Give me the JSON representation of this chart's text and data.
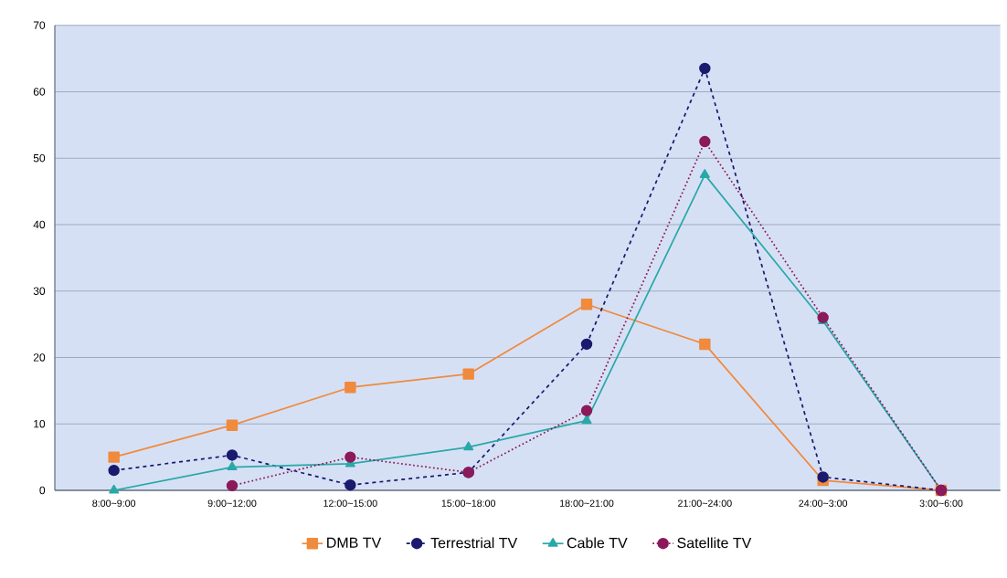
{
  "chart_data": {
    "type": "line",
    "categories": [
      "8:00~9:00",
      "9:00~12:00",
      "12:00~15:00",
      "15:00~18:00",
      "18:00~21:00",
      "21:00~24:00",
      "24:00~3:00",
      "3:00~6:00"
    ],
    "series": [
      {
        "name": "DMB TV",
        "color": "#f08a3c",
        "marker": "square",
        "line_style": "solid",
        "values": [
          5,
          9.8,
          15.5,
          17.5,
          28,
          22,
          1.5,
          0
        ]
      },
      {
        "name": "Terrestrial TV",
        "color": "#1a1a6e",
        "marker": "circle",
        "line_style": "dashed",
        "values": [
          3,
          5.3,
          0.8,
          2.7,
          22,
          63.5,
          2,
          0
        ]
      },
      {
        "name": "Cable TV",
        "color": "#2aa8a8",
        "marker": "triangle",
        "line_style": "solid",
        "values": [
          0,
          3.5,
          4,
          6.5,
          10.5,
          47.5,
          25.5,
          0
        ]
      },
      {
        "name": "Satellite TV",
        "color": "#8b1a5a",
        "marker": "circle",
        "line_style": "dotted",
        "values": [
          null,
          0.7,
          5,
          2.7,
          12,
          52.5,
          26,
          0
        ]
      }
    ],
    "ylim": [
      0,
      70
    ],
    "yticks": [
      0,
      10,
      20,
      30,
      40,
      50,
      60,
      70
    ],
    "grid": "y",
    "legend": "bottom"
  }
}
